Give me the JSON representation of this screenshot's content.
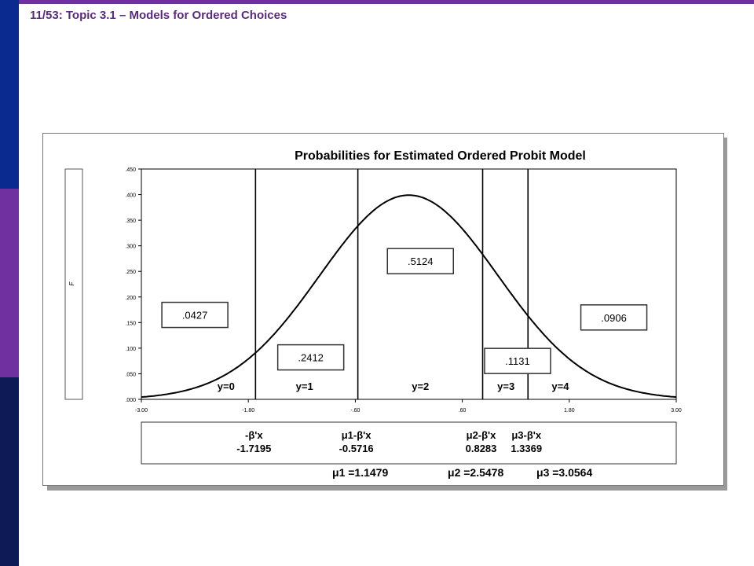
{
  "slide": {
    "title": "11/53: Topic 3.1 – Models for Ordered Choices"
  },
  "colors": {
    "sidebar_top": "#0a2a8f",
    "sidebar_mid": "#7030a0",
    "sidebar_bot": "#0d1a55",
    "top_line": "#7030a0",
    "title": "#5a2a7e"
  },
  "chart_data": {
    "type": "line",
    "title": "Probabilities for Estimated Ordered Probit Model",
    "ylabel": "F",
    "xlim": [
      -3.0,
      3.0
    ],
    "ylim": [
      0.0,
      0.45
    ],
    "x_ticks": [
      "-3.00",
      "-1.80",
      "-.60",
      ".60",
      "1.80",
      "3.00"
    ],
    "x_tick_values": [
      -3.0,
      -1.8,
      -0.6,
      0.6,
      1.8,
      3.0
    ],
    "y_ticks": [
      ".000",
      ".050",
      ".100",
      ".150",
      ".200",
      ".250",
      ".300",
      ".350",
      ".400",
      ".450"
    ],
    "y_tick_values": [
      0.0,
      0.05,
      0.1,
      0.15,
      0.2,
      0.25,
      0.3,
      0.35,
      0.4,
      0.45
    ],
    "curve": "standard normal density",
    "curve_mean": 0,
    "curve_sd": 1,
    "thresholds": [
      -1.7195,
      -0.5716,
      0.8283,
      1.3369
    ],
    "regions": [
      {
        "label": "y=0",
        "x": -2.05
      },
      {
        "label": "y=1",
        "x": -1.17
      },
      {
        "label": "y=2",
        "x": 0.13
      },
      {
        "label": "y=3",
        "x": 1.09
      },
      {
        "label": "y=4",
        "x": 1.7
      }
    ],
    "probability_boxes": [
      {
        "value": ".0427",
        "x": -2.4,
        "y": 0.165
      },
      {
        "value": ".2412",
        "x": -1.1,
        "y": 0.082
      },
      {
        "value": ".5124",
        "x": 0.13,
        "y": 0.27
      },
      {
        "value": ".1131",
        "x": 1.22,
        "y": 0.075
      },
      {
        "value": ".0906",
        "x": 2.3,
        "y": 0.16
      }
    ],
    "threshold_labels": [
      {
        "line1": "-β'x",
        "line2": "-1.7195"
      },
      {
        "line1": "μ1-β'x",
        "line2": "-0.5716"
      },
      {
        "line1": "μ2-β'x",
        "line2": "0.8283"
      },
      {
        "line1": "μ3-β'x",
        "line2": "1.3369"
      }
    ],
    "mu_values": [
      "μ1 =1.1479",
      "μ2 =2.5478",
      "μ3 =3.0564"
    ]
  }
}
